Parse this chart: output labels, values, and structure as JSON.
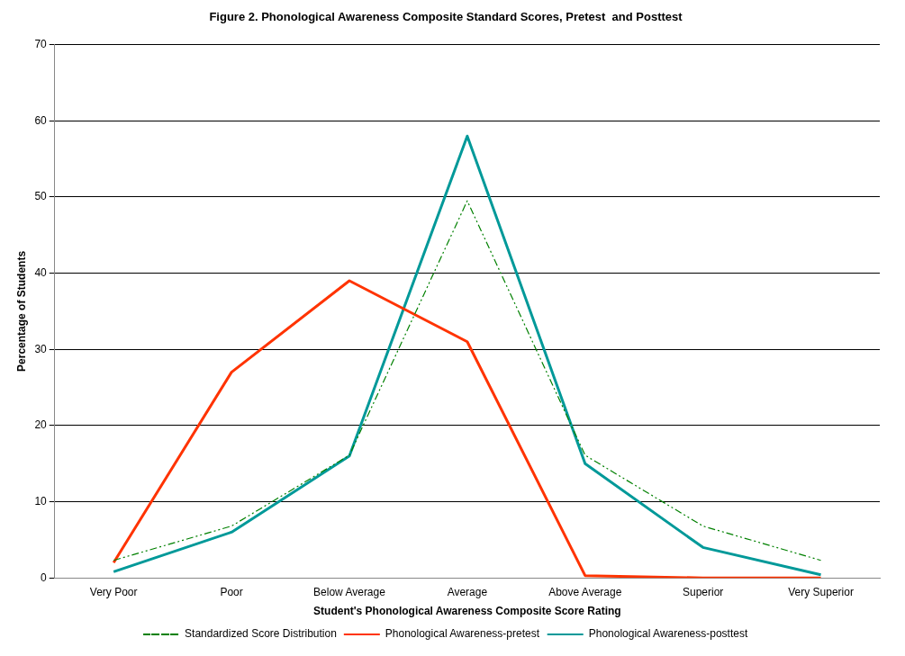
{
  "chart_data": {
    "type": "line",
    "title": "Figure 2. Phonological Awareness Composite Standard Scores, Pretest  and Posttest",
    "xlabel": "Student's Phonological Awareness Composite Score Rating",
    "ylabel": "Percentage of Students",
    "categories": [
      "Very Poor",
      "Poor",
      "Below Average",
      "Average",
      "Above Average",
      "Superior",
      "Very Superior"
    ],
    "series": [
      {
        "name": "Standardized Score Distribution",
        "color": "#008000",
        "line_style": "dashed",
        "values": [
          2.3,
          6.8,
          16.1,
          49.5,
          16.1,
          6.8,
          2.3
        ]
      },
      {
        "name": "Phonological Awareness-pretest",
        "color": "#ff3300",
        "line_style": "solid",
        "values": [
          2,
          27,
          39,
          31,
          0.3,
          0,
          0
        ]
      },
      {
        "name": "Phonological Awareness-posttest",
        "color": "#009999",
        "line_style": "solid",
        "values": [
          0.8,
          6,
          16,
          58,
          15,
          4,
          0.4
        ]
      }
    ],
    "ylim": [
      0,
      70
    ],
    "yticks": [
      0,
      10,
      20,
      30,
      40,
      50,
      60,
      70
    ],
    "grid": "y",
    "legend": "bottom",
    "marker": "none"
  }
}
